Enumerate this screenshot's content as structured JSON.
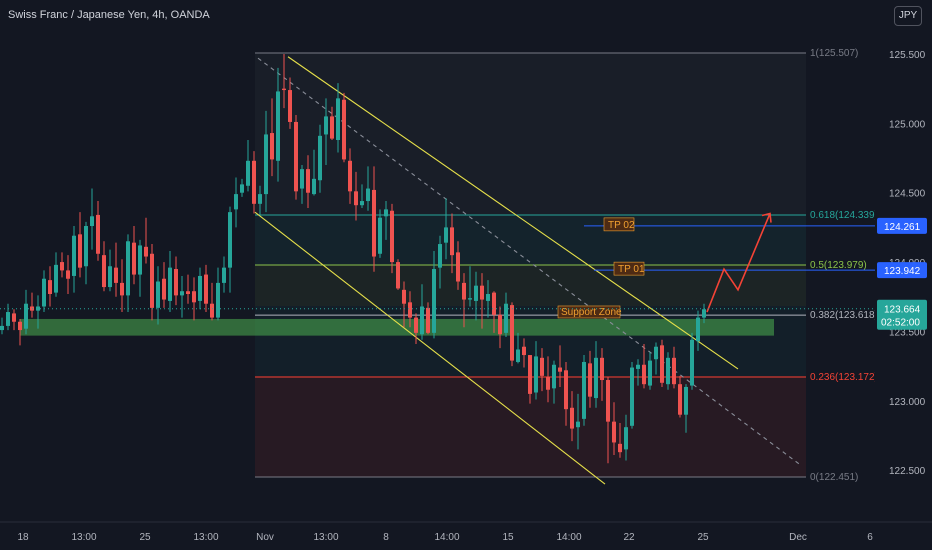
{
  "header": {
    "title": "Swiss Franc / Japanese Yen, 4h, OANDA"
  },
  "currency_button": "JPY",
  "chart_data": {
    "type": "candlestick",
    "title": "Swiss Franc / Japanese Yen, 4h, OANDA",
    "ylim": [
      122.3,
      125.8
    ],
    "y_ticks": [
      {
        "value": 125.5,
        "label": "125.500"
      },
      {
        "value": 125.0,
        "label": "125.000"
      },
      {
        "value": 124.5,
        "label": "124.500"
      },
      {
        "value": 124.0,
        "label": "124.000"
      },
      {
        "value": 123.5,
        "label": "123.500"
      },
      {
        "value": 123.0,
        "label": "123.000"
      },
      {
        "value": 122.5,
        "label": "122.500"
      }
    ],
    "x_ticks": [
      "18",
      "13:00",
      "25",
      "13:00",
      "Nov",
      "13:00",
      "8",
      "14:00",
      "15",
      "14:00",
      "22",
      "25",
      "Dec",
      "6"
    ],
    "fib_levels": [
      {
        "label": "1(125.507)",
        "value": 125.507,
        "color": "#787b86"
      },
      {
        "label": "0.618(124.339)",
        "value": 124.339,
        "color": "#26a69a"
      },
      {
        "label": "0.5(123.979)",
        "value": 123.979,
        "color": "#8bc34a"
      },
      {
        "label": "0.382(123.618)",
        "value": 123.618,
        "color": "#b2b5be"
      },
      {
        "label": "0.236(123.172)",
        "value": 123.172,
        "color": "#f44336"
      },
      {
        "label": "0(122.451)",
        "value": 122.451,
        "color": "#787b86"
      }
    ],
    "support_zone": {
      "label": "Support Zone",
      "low": 123.47,
      "high": 123.59
    },
    "targets": [
      {
        "label": "TP 02",
        "value": 124.261
      },
      {
        "label": "TP 01",
        "value": 123.942
      }
    ],
    "price_tags": [
      {
        "value": 124.261,
        "label": "124.261",
        "color": "#2962ff"
      },
      {
        "value": 123.942,
        "label": "123.942",
        "color": "#2962ff"
      }
    ],
    "last_price": {
      "value": 123.664,
      "label": "123.664",
      "countdown": "02:52:00",
      "color": "#26a69a"
    },
    "channel": {
      "upper": [
        [
          288,
          125.48
        ],
        [
          738,
          123.23
        ]
      ],
      "lower": [
        [
          255,
          124.36
        ],
        [
          605,
          122.4
        ]
      ],
      "mid": [
        [
          258,
          125.47
        ],
        [
          800,
          122.54
        ]
      ]
    },
    "projection": [
      [
        707,
        123.64
      ],
      [
        724,
        123.95
      ],
      [
        738,
        123.8
      ],
      [
        770,
        124.35
      ]
    ],
    "candles": [
      [
        2,
        123.51,
        123.6,
        123.48,
        123.54
      ],
      [
        8,
        123.54,
        123.7,
        123.51,
        123.64
      ],
      [
        14,
        123.63,
        123.66,
        123.51,
        123.57
      ],
      [
        20,
        123.57,
        123.59,
        123.4,
        123.51
      ],
      [
        26,
        123.52,
        123.8,
        123.48,
        123.7
      ],
      [
        32,
        123.68,
        123.78,
        123.6,
        123.65
      ],
      [
        38,
        123.65,
        123.76,
        123.52,
        123.68
      ],
      [
        44,
        123.68,
        123.94,
        123.64,
        123.88
      ],
      [
        50,
        123.87,
        123.97,
        123.68,
        123.77
      ],
      [
        56,
        123.78,
        124.07,
        123.75,
        123.98
      ],
      [
        62,
        124.0,
        124.07,
        123.89,
        123.94
      ],
      [
        68,
        123.94,
        124.05,
        123.77,
        123.88
      ],
      [
        74,
        123.9,
        124.26,
        123.78,
        124.19
      ],
      [
        80,
        124.2,
        124.36,
        123.89,
        123.96
      ],
      [
        86,
        123.97,
        124.29,
        123.84,
        124.26
      ],
      [
        92,
        124.26,
        124.53,
        124.09,
        124.33
      ],
      [
        98,
        124.34,
        124.44,
        124.01,
        124.06
      ],
      [
        104,
        124.05,
        124.15,
        123.79,
        123.82
      ],
      [
        110,
        123.82,
        124.09,
        123.79,
        123.97
      ],
      [
        116,
        123.96,
        124.14,
        123.75,
        123.85
      ],
      [
        122,
        123.85,
        124.02,
        123.64,
        123.76
      ],
      [
        128,
        123.76,
        124.2,
        123.64,
        124.15
      ],
      [
        134,
        124.14,
        124.26,
        123.84,
        123.91
      ],
      [
        140,
        123.91,
        124.16,
        123.75,
        124.12
      ],
      [
        146,
        124.11,
        124.32,
        123.99,
        124.04
      ],
      [
        152,
        124.06,
        124.13,
        123.58,
        123.67
      ],
      [
        158,
        123.67,
        123.97,
        123.55,
        123.86
      ],
      [
        164,
        123.88,
        124.0,
        123.67,
        123.73
      ],
      [
        170,
        123.72,
        124.08,
        123.64,
        123.96
      ],
      [
        176,
        123.95,
        124.04,
        123.69,
        123.76
      ],
      [
        182,
        123.76,
        123.9,
        123.6,
        123.79
      ],
      [
        188,
        123.79,
        123.91,
        123.7,
        123.77
      ],
      [
        194,
        123.79,
        123.89,
        123.58,
        123.71
      ],
      [
        200,
        123.72,
        123.96,
        123.66,
        123.9
      ],
      [
        206,
        123.91,
        123.98,
        123.64,
        123.7
      ],
      [
        212,
        123.7,
        123.85,
        123.58,
        123.6
      ],
      [
        218,
        123.6,
        123.96,
        123.58,
        123.85
      ],
      [
        224,
        123.85,
        124.04,
        123.78,
        123.96
      ],
      [
        230,
        123.96,
        124.4,
        123.78,
        124.36
      ],
      [
        236,
        124.38,
        124.61,
        124.25,
        124.49
      ],
      [
        242,
        124.5,
        124.6,
        124.47,
        124.56
      ],
      [
        248,
        124.55,
        124.88,
        124.51,
        124.73
      ],
      [
        254,
        124.73,
        124.8,
        124.35,
        124.42
      ],
      [
        260,
        124.42,
        124.55,
        124.34,
        124.49
      ],
      [
        266,
        124.49,
        125.09,
        124.36,
        124.92
      ],
      [
        272,
        124.93,
        125.18,
        124.62,
        124.74
      ],
      [
        278,
        124.73,
        125.4,
        124.58,
        125.23
      ],
      [
        284,
        125.25,
        125.5,
        125.11,
        125.24
      ],
      [
        290,
        125.24,
        125.33,
        124.96,
        125.01
      ],
      [
        296,
        125.01,
        125.06,
        124.45,
        124.51
      ],
      [
        302,
        124.53,
        124.7,
        124.42,
        124.67
      ],
      [
        308,
        124.67,
        124.77,
        124.39,
        124.5
      ],
      [
        314,
        124.49,
        124.81,
        124.48,
        124.6
      ],
      [
        320,
        124.59,
        124.99,
        124.5,
        124.91
      ],
      [
        326,
        124.92,
        125.18,
        124.7,
        125.05
      ],
      [
        332,
        125.05,
        125.12,
        124.88,
        124.89
      ],
      [
        338,
        124.88,
        125.29,
        124.79,
        125.18
      ],
      [
        344,
        125.17,
        125.22,
        124.72,
        124.74
      ],
      [
        350,
        124.73,
        124.82,
        124.42,
        124.51
      ],
      [
        356,
        124.51,
        124.65,
        124.3,
        124.41
      ],
      [
        362,
        124.41,
        124.56,
        124.39,
        124.44
      ],
      [
        368,
        124.44,
        124.69,
        124.37,
        124.53
      ],
      [
        374,
        124.52,
        124.69,
        123.93,
        124.04
      ],
      [
        380,
        124.06,
        124.38,
        124.03,
        124.32
      ],
      [
        386,
        124.33,
        124.44,
        124.16,
        124.38
      ],
      [
        392,
        124.37,
        124.42,
        123.92,
        124.0
      ],
      [
        398,
        124.0,
        124.02,
        123.8,
        123.81
      ],
      [
        404,
        123.8,
        123.86,
        123.53,
        123.7
      ],
      [
        410,
        123.71,
        123.79,
        123.53,
        123.6
      ],
      [
        416,
        123.6,
        123.63,
        123.41,
        123.49
      ],
      [
        422,
        123.48,
        123.84,
        123.44,
        123.68
      ],
      [
        428,
        123.67,
        123.71,
        123.48,
        123.49
      ],
      [
        434,
        123.49,
        124.08,
        123.45,
        123.95
      ],
      [
        440,
        123.96,
        124.19,
        123.81,
        124.13
      ],
      [
        446,
        124.14,
        124.46,
        124.02,
        124.25
      ],
      [
        452,
        124.25,
        124.35,
        123.92,
        124.05
      ],
      [
        458,
        124.07,
        124.15,
        123.8,
        123.86
      ],
      [
        464,
        123.85,
        123.92,
        123.53,
        123.73
      ],
      [
        470,
        123.73,
        123.97,
        123.68,
        123.74
      ],
      [
        476,
        123.72,
        123.93,
        123.58,
        123.83
      ],
      [
        482,
        123.83,
        123.92,
        123.52,
        123.73
      ],
      [
        488,
        123.72,
        123.87,
        123.6,
        123.77
      ],
      [
        494,
        123.78,
        123.79,
        123.49,
        123.62
      ],
      [
        500,
        123.62,
        123.68,
        123.38,
        123.48
      ],
      [
        506,
        123.49,
        123.78,
        123.46,
        123.7
      ],
      [
        512,
        123.69,
        123.71,
        123.25,
        123.29
      ],
      [
        518,
        123.28,
        123.49,
        123.27,
        123.37
      ],
      [
        524,
        123.39,
        123.45,
        123.24,
        123.33
      ],
      [
        530,
        123.33,
        123.33,
        122.98,
        123.05
      ],
      [
        536,
        123.06,
        123.43,
        123.01,
        123.32
      ],
      [
        542,
        123.31,
        123.38,
        123.07,
        123.18
      ],
      [
        548,
        123.17,
        123.32,
        122.99,
        123.08
      ],
      [
        554,
        123.09,
        123.29,
        122.98,
        123.26
      ],
      [
        560,
        123.24,
        123.4,
        123.1,
        123.21
      ],
      [
        566,
        123.22,
        123.28,
        122.82,
        122.94
      ],
      [
        572,
        122.95,
        123.07,
        122.71,
        122.8
      ],
      [
        578,
        122.81,
        123.05,
        122.65,
        122.85
      ],
      [
        584,
        122.87,
        123.33,
        122.82,
        123.28
      ],
      [
        590,
        123.27,
        123.36,
        122.95,
        123.03
      ],
      [
        596,
        123.02,
        123.43,
        122.95,
        123.31
      ],
      [
        602,
        123.31,
        123.38,
        123.0,
        123.15
      ],
      [
        608,
        123.15,
        123.17,
        122.55,
        122.85
      ],
      [
        614,
        122.85,
        122.99,
        122.61,
        122.7
      ],
      [
        620,
        122.69,
        122.84,
        122.59,
        122.63
      ],
      [
        626,
        122.65,
        122.9,
        122.57,
        122.81
      ],
      [
        632,
        122.82,
        123.28,
        122.8,
        123.24
      ],
      [
        638,
        123.23,
        123.3,
        123.11,
        123.26
      ],
      [
        644,
        123.26,
        123.41,
        123.09,
        123.12
      ],
      [
        650,
        123.11,
        123.35,
        123.08,
        123.29
      ],
      [
        656,
        123.3,
        123.42,
        123.19,
        123.39
      ],
      [
        662,
        123.4,
        123.44,
        123.1,
        123.13
      ],
      [
        668,
        123.12,
        123.35,
        123.08,
        123.31
      ],
      [
        674,
        123.31,
        123.39,
        123.09,
        123.12
      ],
      [
        680,
        123.12,
        123.18,
        122.88,
        122.9
      ],
      [
        686,
        122.9,
        123.12,
        122.77,
        123.1
      ],
      [
        692,
        123.11,
        123.49,
        123.08,
        123.44
      ],
      [
        698,
        123.43,
        123.65,
        123.36,
        123.6
      ],
      [
        704,
        123.6,
        123.7,
        123.56,
        123.66
      ]
    ]
  },
  "icons": {
    "currency_button": "jpy-toggle-button"
  }
}
